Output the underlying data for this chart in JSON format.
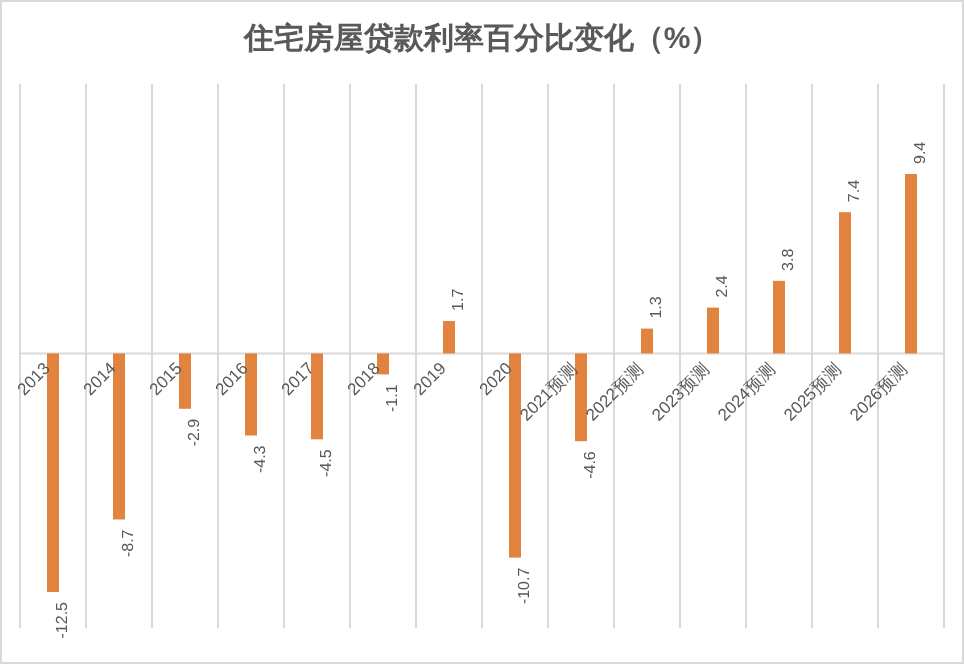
{
  "chart_data": {
    "type": "bar",
    "title": "住宅房屋贷款利率百分比变化（%）",
    "categories": [
      "2013",
      "2014",
      "2015",
      "2016",
      "2017",
      "2018",
      "2019",
      "2020",
      "2021预测",
      "2022预测",
      "2023预测",
      "2024预测",
      "2025预测",
      "2026预测"
    ],
    "values": [
      -12.5,
      -8.7,
      -2.9,
      -4.3,
      -4.5,
      -1.1,
      1.7,
      -10.7,
      -4.6,
      1.3,
      2.4,
      3.8,
      7.4,
      9.4
    ],
    "color": "#e2843f",
    "data_labels": true,
    "grid": "x"
  }
}
